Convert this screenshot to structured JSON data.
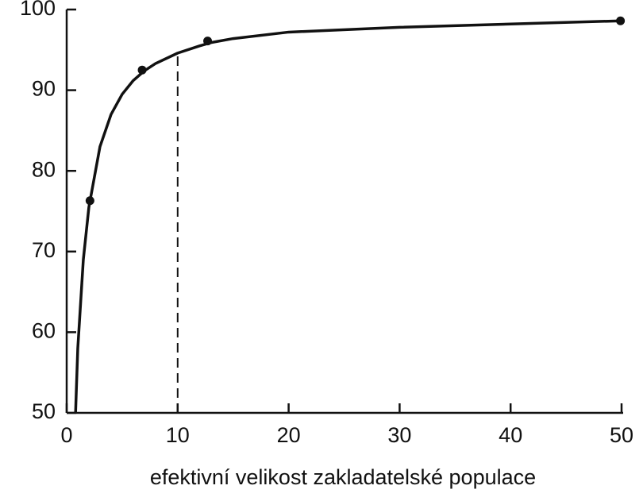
{
  "chart_data": {
    "type": "line",
    "x_label": "efektivní velikost zakladatelské populace",
    "x": [
      0.8,
      1,
      1.5,
      2,
      3,
      4,
      5,
      6,
      7,
      8,
      10,
      12,
      13,
      15,
      20,
      30,
      40,
      50
    ],
    "series": [
      {
        "color": "#111111",
        "values": [
          50,
          58,
          69,
          75.5,
          83,
          87,
          89.5,
          91.2,
          92.4,
          93.3,
          94.6,
          95.5,
          95.9,
          96.4,
          97.2,
          97.8,
          98.2,
          98.6
        ]
      }
    ],
    "points": {
      "x": [
        2.1,
        6.8,
        12.7,
        49.9
      ],
      "values": [
        76.3,
        92.5,
        96.1,
        98.6
      ],
      "color": "#111111"
    },
    "reference_line": {
      "x": 10,
      "y": 94.6
    },
    "xlim": [
      0,
      50
    ],
    "xticks": [
      0,
      10,
      20,
      30,
      40,
      50
    ],
    "ylim": [
      50,
      100
    ],
    "yticks": [
      50,
      60,
      70,
      80,
      90,
      100
    ]
  }
}
